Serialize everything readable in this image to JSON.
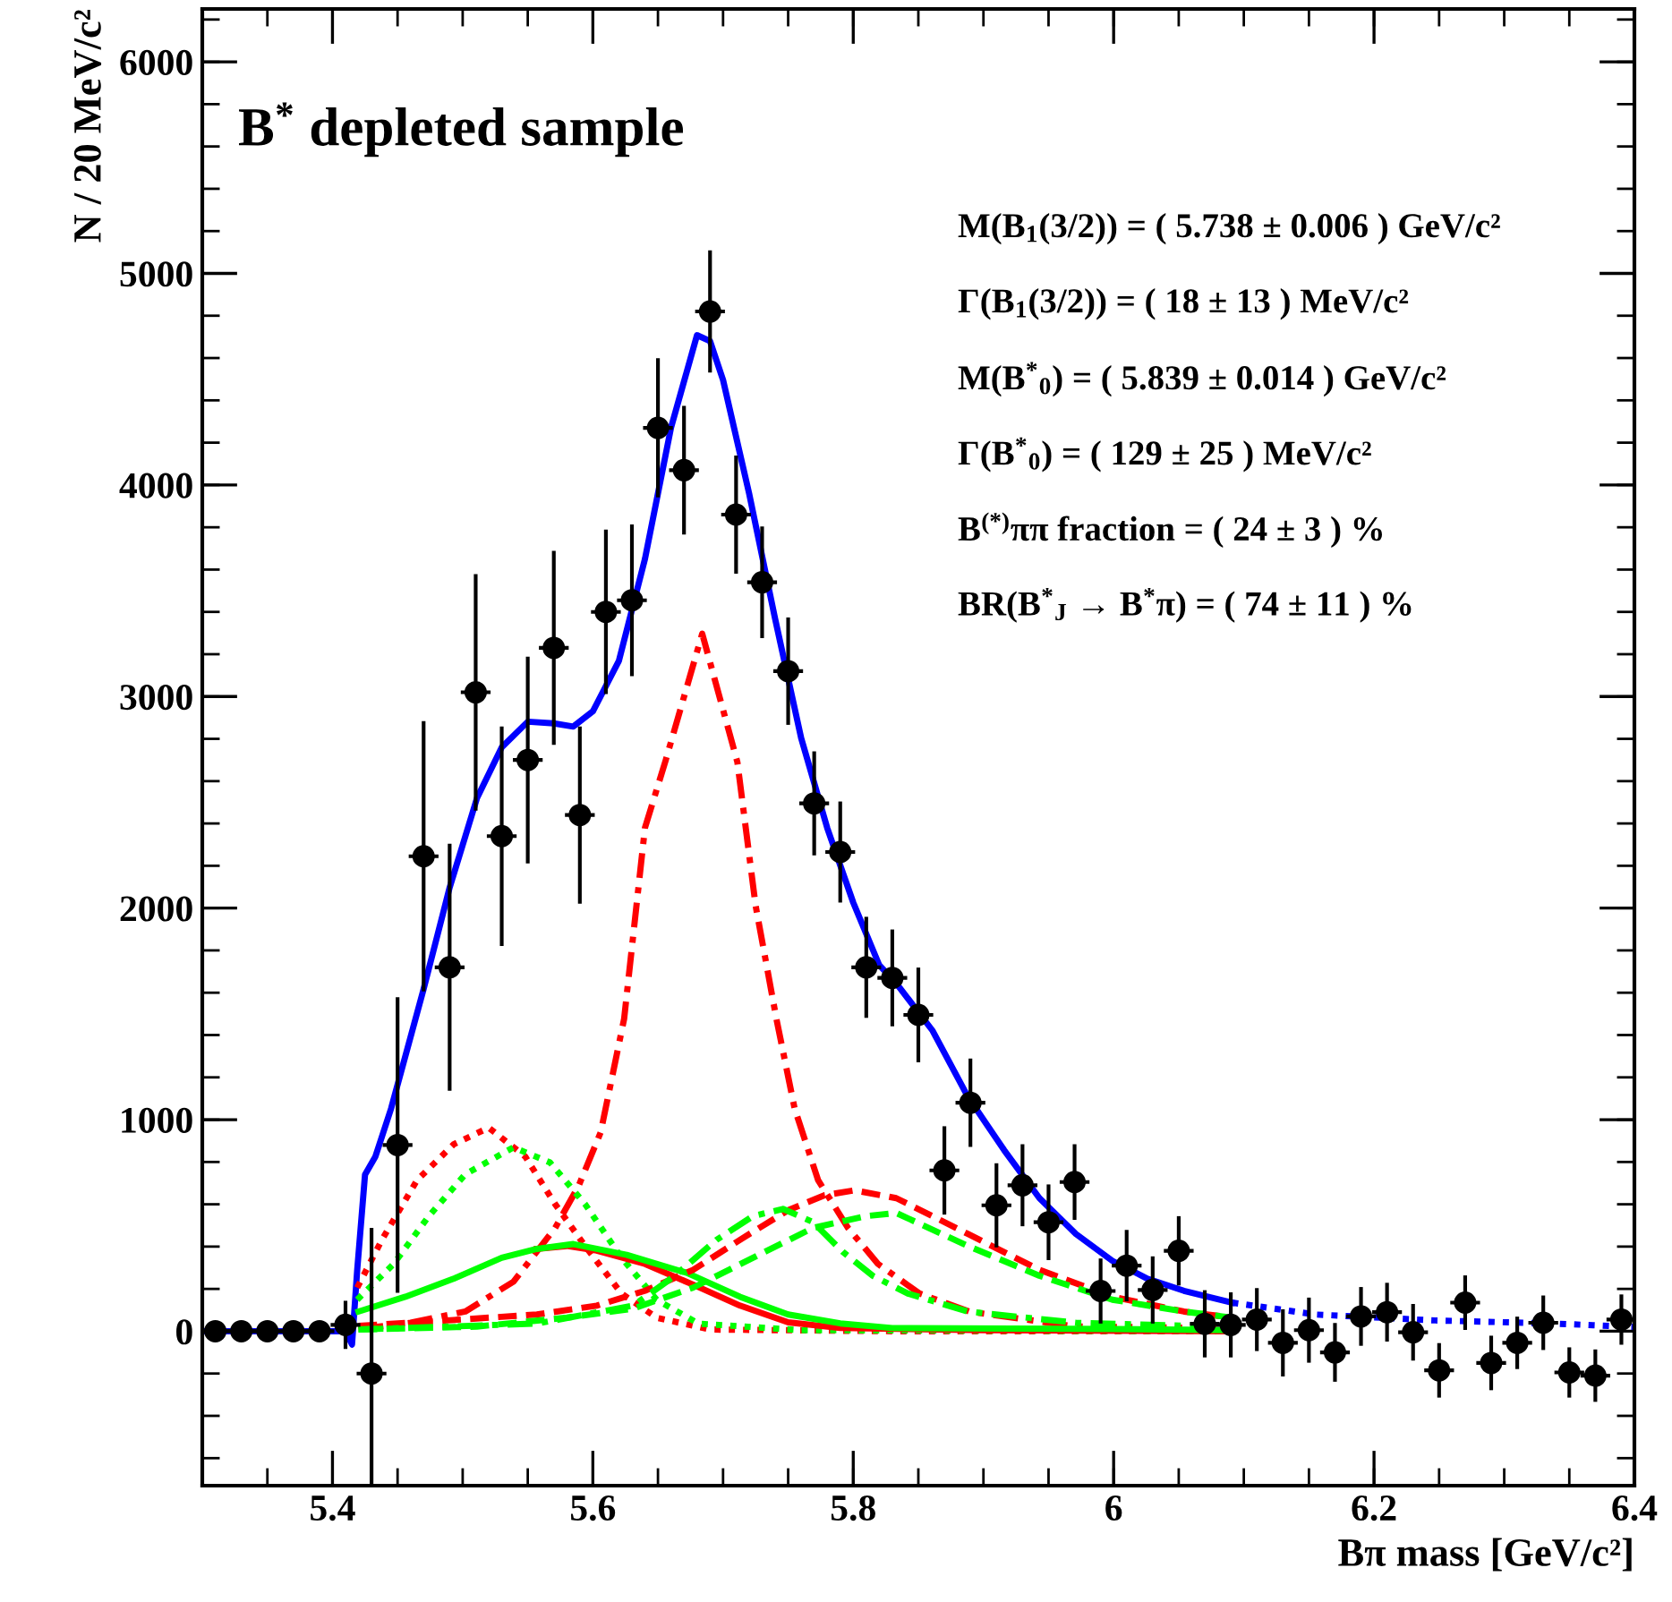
{
  "chart_data": {
    "type": "line",
    "title": "B$^{*}$ depleted sample",
    "xlabel": "Bπ mass [GeV/c²]",
    "ylabel": "N / 20 MeV/c²",
    "annotations": [
      "M(B$_{1}$(3/2)) = ( 5.738 ± 0.006 ) GeV/c²",
      "Γ(B$_{1}$(3/2)) = ( 18 ± 13 ) MeV/c²",
      "M(B$^{*}$$_{0}$) = ( 5.839 ± 0.014 ) GeV/c²",
      "Γ(B$^{*}$$_{0}$) = ( 129 ± 25 ) MeV/c²",
      "B$^{(*)}$ππ fraction = ( 24 ± 3 ) %",
      "BR(B$^{*}$$_{J}$ → B$^{*}$π) = ( 74 ± 11 ) %"
    ],
    "xlim": [
      5.3,
      6.4
    ],
    "xticks": [
      5.4,
      5.6,
      5.8,
      6,
      6.2,
      6.4
    ],
    "ylim": [
      -730,
      6250
    ],
    "yticks": [
      0,
      1000,
      2000,
      3000,
      4000,
      5000,
      6000
    ],
    "grid": false,
    "series": [
      {
        "color": "#0000ff",
        "line_style": "solid",
        "x": [
          5.3,
          5.41,
          5.415,
          5.419,
          5.425,
          5.433,
          5.445,
          5.47,
          5.49,
          5.511,
          5.53,
          5.55,
          5.57,
          5.585,
          5.6,
          5.62,
          5.64,
          5.66,
          5.68,
          5.69,
          5.7,
          5.72,
          5.74,
          5.76,
          5.78,
          5.8,
          5.82,
          5.833,
          5.861,
          5.888,
          5.916,
          5.943,
          5.971,
          5.999,
          6.026,
          6.054,
          6.091
        ],
        "values": [
          0,
          0,
          -63,
          290,
          740,
          826,
          1052,
          1617,
          2097,
          2520,
          2760,
          2881,
          2873,
          2858,
          2930,
          3169,
          3650,
          4270,
          4708,
          4680,
          4496,
          3960,
          3367,
          2803,
          2379,
          2026,
          1730,
          1645,
          1420,
          1109,
          855,
          629,
          460,
          333,
          248,
          191,
          135
        ]
      },
      {
        "color": "#0000ff",
        "line_style": "dotted",
        "x": [
          6.091,
          6.155,
          6.247,
          6.339,
          6.4
        ],
        "values": [
          135,
          79,
          51,
          36,
          20
        ]
      },
      {
        "color": "#ff0000",
        "line_style": "dashdot",
        "x": [
          5.42,
          5.46,
          5.502,
          5.539,
          5.571,
          5.589,
          5.606,
          5.624,
          5.64,
          5.656,
          5.684,
          5.711,
          5.725,
          5.741,
          5.755,
          5.773,
          5.796,
          5.819,
          5.851,
          5.889,
          5.971,
          6.09
        ],
        "values": [
          10,
          40,
          93,
          234,
          488,
          686,
          940,
          1476,
          2379,
          2700,
          3297,
          2690,
          2012,
          1476,
          1052,
          714,
          488,
          318,
          178,
          93,
          22,
          15
        ]
      },
      {
        "color": "#ff0000",
        "line_style": "dotted",
        "x": [
          5.419,
          5.438,
          5.465,
          5.493,
          5.52,
          5.548,
          5.571,
          5.594,
          5.622,
          5.649,
          5.69,
          5.83,
          6.09
        ],
        "values": [
          206,
          432,
          714,
          883,
          962,
          826,
          601,
          403,
          178,
          64,
          8,
          0,
          0
        ]
      },
      {
        "color": "#00ff00",
        "line_style": "dotted",
        "x": [
          5.419,
          5.447,
          5.474,
          5.502,
          5.539,
          5.567,
          5.594,
          5.622,
          5.649,
          5.681,
          5.76,
          6.09
        ],
        "values": [
          149,
          318,
          544,
          742,
          869,
          798,
          601,
          347,
          149,
          36,
          5,
          0
        ]
      },
      {
        "color": "#ff0000",
        "line_style": "solid",
        "x": [
          5.557,
          5.58,
          5.603,
          5.64,
          5.677,
          5.713,
          5.75,
          5.79,
          5.9,
          6.09
        ],
        "values": [
          389,
          403,
          381,
          318,
          220,
          121,
          42,
          15,
          5,
          0
        ]
      },
      {
        "color": "#00ff00",
        "line_style": "solid",
        "x": [
          5.42,
          5.456,
          5.493,
          5.53,
          5.557,
          5.585,
          5.626,
          5.672,
          5.713,
          5.75,
          5.79,
          5.83,
          6.0,
          6.09
        ],
        "values": [
          93,
          163,
          248,
          347,
          389,
          412,
          361,
          276,
          163,
          79,
          37,
          15,
          10,
          5
        ]
      },
      {
        "color": "#ff0000",
        "line_style": "dashed",
        "x": [
          5.42,
          5.488,
          5.557,
          5.603,
          5.64,
          5.677,
          5.713,
          5.75,
          5.778,
          5.801,
          5.833,
          5.856,
          5.888,
          5.943,
          5.999,
          6.054,
          6.09
        ],
        "values": [
          25,
          51,
          79,
          121,
          191,
          290,
          432,
          572,
          643,
          666,
          629,
          559,
          460,
          290,
          163,
          93,
          65
        ]
      },
      {
        "color": "#00ff00",
        "line_style": "dashed",
        "x": [
          5.42,
          5.511,
          5.58,
          5.631,
          5.677,
          5.723,
          5.769,
          5.81,
          5.833,
          5.888,
          5.943,
          5.999,
          6.054,
          6.09
        ],
        "values": [
          8,
          22,
          64,
          107,
          206,
          347,
          488,
          544,
          559,
          403,
          262,
          149,
          93,
          65
        ]
      },
      {
        "color": "#00ff00",
        "line_style": "dashdot",
        "x": [
          5.42,
          5.557,
          5.631,
          5.663,
          5.695,
          5.723,
          5.746,
          5.769,
          5.792,
          5.815,
          5.842,
          5.888,
          5.971,
          6.09
        ],
        "values": [
          8,
          36,
          121,
          262,
          432,
          544,
          578,
          516,
          375,
          262,
          178,
          93,
          40,
          20
        ]
      },
      {
        "type": "scatter",
        "color": "#000000",
        "marker": "circle",
        "x": [
          5.31,
          5.33,
          5.35,
          5.37,
          5.39,
          5.41,
          5.43,
          5.45,
          5.47,
          5.49,
          5.51,
          5.53,
          5.55,
          5.57,
          5.59,
          5.61,
          5.63,
          5.65,
          5.67,
          5.69,
          5.71,
          5.73,
          5.75,
          5.77,
          5.79,
          5.81,
          5.83,
          5.85,
          5.87,
          5.89,
          5.91,
          5.93,
          5.95,
          5.97,
          5.99,
          6.01,
          6.03,
          6.05,
          6.07,
          6.09,
          6.11,
          6.13,
          6.15,
          6.17,
          6.19,
          6.21,
          6.23,
          6.25,
          6.27,
          6.29,
          6.31,
          6.33,
          6.35,
          6.37,
          6.39
        ],
        "values": [
          0,
          0,
          0,
          0,
          0,
          30,
          -200,
          880,
          2245,
          1720,
          3020,
          2340,
          2700,
          3230,
          2440,
          3400,
          3455,
          4270,
          4070,
          4820,
          3860,
          3540,
          3120,
          2495,
          2265,
          1720,
          1670,
          1495,
          760,
          1080,
          595,
          690,
          515,
          705,
          190,
          310,
          195,
          380,
          35,
          30,
          55,
          -55,
          5,
          -100,
          70,
          90,
          -5,
          -185,
          135,
          -150,
          -55,
          40,
          -195,
          -210,
          55
        ],
        "errors": [
          null,
          null,
          null,
          null,
          null,
          105,
          680,
          690,
          630,
          575,
          550,
          510,
          480,
          450,
          410,
          380,
          350,
          320,
          295,
          280,
          270,
          255,
          245,
          237,
          230,
          230,
          220,
          215,
          200,
          200,
          190,
          185,
          170,
          170,
          145,
          160,
          150,
          155,
          150,
          145,
          140,
          150,
          145,
          130,
          130,
          130,
          125,
          120,
          120,
          120,
          115,
          120,
          110,
          115,
          110
        ],
        "xerrors": [
          0.01,
          0.01,
          0.01,
          0.01,
          0.01,
          0.01,
          0.01,
          0.01,
          0.01,
          0.01,
          0.01,
          0.01,
          0.01,
          0.01,
          0.01,
          0.01,
          0.01,
          0.01,
          0.01,
          0.01,
          0.01,
          0.01,
          0.01,
          0.01,
          0.01,
          0.01,
          0.01,
          0.01,
          0.01,
          0.01,
          0.01,
          0.01,
          0.01,
          0.01,
          0.01,
          0.01,
          0.01,
          0.01,
          0.01,
          0.01,
          0.01,
          0.01,
          0.01,
          0.01,
          0.01,
          0.01,
          0.01,
          0.01,
          0.01,
          0.01,
          0.01,
          0.01,
          0.01,
          0.01,
          0.01
        ]
      }
    ]
  }
}
